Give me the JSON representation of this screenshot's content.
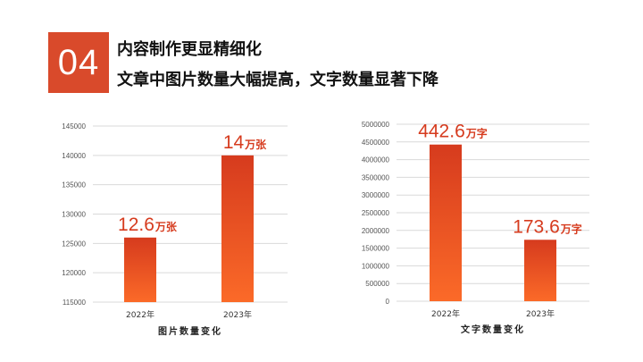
{
  "slide": {
    "number": "04",
    "title": "内容制作更显精细化",
    "subtitle": "文章中图片数量大幅提高，文字数量显著下降",
    "accent_color": "#d94a2b"
  },
  "chart_data": [
    {
      "type": "bar",
      "categories": [
        "2022年",
        "2023年"
      ],
      "values": [
        126000,
        140000
      ],
      "data_labels": [
        {
          "number": "12.6",
          "unit": "万张"
        },
        {
          "number": "14",
          "unit": "万张"
        }
      ],
      "yticks": [
        "115000",
        "120000",
        "125000",
        "130000",
        "135000",
        "140000",
        "145000"
      ],
      "ylim": [
        115000,
        145000
      ],
      "xlabel": "图片数量变化",
      "ylabel": "",
      "grid": true,
      "bar_gradient": [
        "#d63b1e",
        "#fb6a28"
      ]
    },
    {
      "type": "bar",
      "categories": [
        "2022年",
        "2023年"
      ],
      "values": [
        4426000,
        1736000
      ],
      "data_labels": [
        {
          "number": "442.6",
          "unit": "万字"
        },
        {
          "number": "173.6",
          "unit": "万字"
        }
      ],
      "yticks": [
        "0",
        "500000",
        "1000000",
        "1500000",
        "2000000",
        "2500000",
        "3000000",
        "3500000",
        "4000000",
        "4500000",
        "5000000"
      ],
      "ylim": [
        0,
        5000000
      ],
      "xlabel": "文字数量变化",
      "ylabel": "",
      "grid": true,
      "bar_gradient": [
        "#d63b1e",
        "#fb6a28"
      ]
    }
  ]
}
